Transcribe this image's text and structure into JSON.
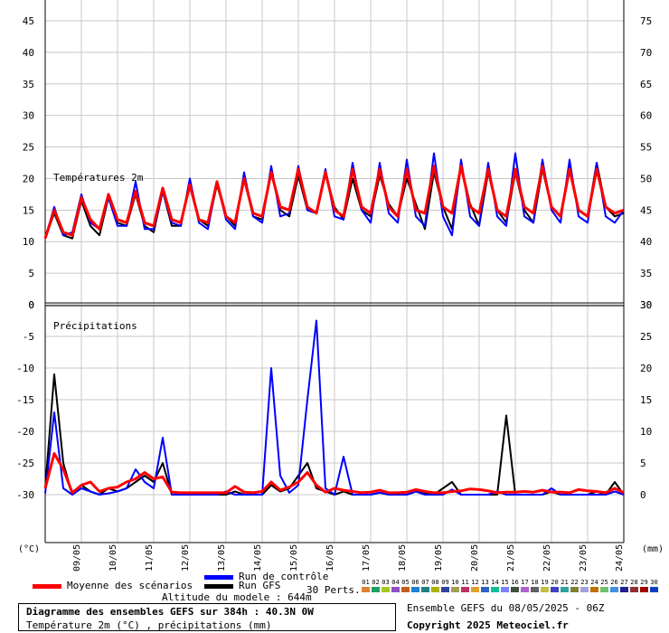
{
  "chart_data": [
    {
      "type": "line",
      "title": "Températures 2m",
      "ylabel_left_unit": "(°C)",
      "ylim_left": [
        0,
        45
      ],
      "yticks_left": [
        "45",
        "40",
        "35",
        "30",
        "25",
        "20",
        "15",
        "10",
        "5",
        "0"
      ],
      "ylim_right": [
        30,
        75
      ],
      "yticks_right": [
        "75",
        "70",
        "65",
        "60",
        "55",
        "50",
        "45",
        "40",
        "35",
        "30"
      ],
      "grid": true,
      "x_dates": [
        "09/05",
        "10/05",
        "11/05",
        "12/05",
        "13/05",
        "14/05",
        "15/05",
        "16/05",
        "17/05",
        "18/05",
        "19/05",
        "20/05",
        "21/05",
        "22/05",
        "23/05",
        "24/05"
      ],
      "x_hours": [
        0,
        6,
        12,
        18,
        24,
        30,
        36,
        42,
        48,
        54,
        60,
        66,
        72,
        78,
        84,
        90,
        96,
        102,
        108,
        114,
        120,
        126,
        132,
        138,
        144,
        150,
        156,
        162,
        168,
        174,
        180,
        186,
        192,
        198,
        204,
        210,
        216,
        222,
        228,
        234,
        240,
        246,
        252,
        258,
        264,
        270,
        276,
        282,
        288,
        294,
        300,
        306,
        312,
        318,
        324,
        330,
        336,
        342,
        348,
        354,
        360,
        366,
        372,
        378,
        384
      ],
      "series": [
        {
          "name": "Moyenne des scénarios",
          "color": "#ff0000",
          "values": [
            10.5,
            15,
            11.5,
            11,
            17,
            13.5,
            12,
            17.5,
            13.5,
            13,
            18,
            13,
            12.5,
            18.5,
            13.5,
            13,
            19,
            13.5,
            13,
            19.5,
            14,
            13,
            20,
            14.5,
            14,
            21,
            15.5,
            15,
            21.5,
            15.5,
            14.5,
            21,
            15,
            14,
            21.5,
            15.5,
            14.5,
            21.5,
            15.5,
            14,
            21.5,
            15,
            14.5,
            22,
            15.5,
            14.5,
            22,
            15.5,
            14.5,
            21.5,
            15,
            14,
            21.5,
            15.5,
            14.5,
            22,
            15.5,
            14,
            21.5,
            15,
            14,
            21.5,
            15.5,
            14.5,
            15
          ]
        },
        {
          "name": "Run de contrôle",
          "color": "#0000ff",
          "values": [
            10.5,
            15.5,
            11,
            11.5,
            17.5,
            13,
            12,
            17,
            12.5,
            12.5,
            19.5,
            12,
            12,
            18,
            13,
            12.5,
            20,
            13,
            12,
            19.5,
            13.5,
            12,
            21,
            14,
            13,
            22,
            14,
            14.5,
            22,
            15,
            14.5,
            21.5,
            14,
            13.5,
            22.5,
            15,
            13,
            22.5,
            14.5,
            13,
            23,
            14,
            12.5,
            24,
            14,
            11,
            23,
            14,
            12.5,
            22.5,
            14,
            12.5,
            24,
            14,
            13,
            23,
            15,
            13,
            23,
            14,
            13,
            22.5,
            14,
            13,
            15
          ]
        },
        {
          "name": "Run GFS",
          "color": "#000000",
          "values": [
            10.5,
            14.5,
            11,
            10.5,
            16.5,
            12.5,
            11,
            17,
            13,
            12.5,
            17.5,
            12.5,
            11.5,
            18,
            12.5,
            12.5,
            19.5,
            13.5,
            12.5,
            19,
            14,
            12.5,
            20,
            14,
            13.5,
            21,
            15,
            14,
            20.5,
            15,
            14.5,
            21,
            15.5,
            13.5,
            20,
            15,
            14,
            20.5,
            16,
            14,
            20,
            16,
            12,
            21,
            15.5,
            12,
            22,
            16,
            12.5,
            21,
            15,
            13,
            21,
            15,
            13,
            21.5,
            15.5,
            14,
            22,
            15,
            14,
            22.5,
            15.5,
            14,
            14.5
          ]
        }
      ]
    },
    {
      "type": "line",
      "title": "Précipitations",
      "ylim_left": [
        -30,
        0
      ],
      "yticks_left": [
        "0",
        "-5",
        "-10",
        "-15",
        "-20",
        "-25",
        "-30"
      ],
      "ylim_right": [
        0,
        30
      ],
      "yticks_right": [
        "30",
        "25",
        "20",
        "15",
        "10",
        "5",
        "0"
      ],
      "ylabel_right_unit": "(mm)",
      "grid": true,
      "x_hours": [
        0,
        6,
        12,
        18,
        24,
        30,
        36,
        42,
        48,
        54,
        60,
        66,
        72,
        78,
        84,
        90,
        96,
        102,
        108,
        114,
        120,
        126,
        132,
        138,
        144,
        150,
        156,
        162,
        168,
        174,
        180,
        186,
        192,
        198,
        204,
        210,
        216,
        222,
        228,
        234,
        240,
        246,
        252,
        258,
        264,
        270,
        276,
        282,
        288,
        294,
        300,
        306,
        312,
        318,
        324,
        330,
        336,
        342,
        348,
        354,
        360,
        366,
        372,
        378,
        384
      ],
      "series": [
        {
          "name": "Moyenne des scénarios",
          "color": "#ff0000",
          "values": [
            1,
            6.5,
            4,
            0.3,
            1.5,
            2,
            0.5,
            1,
            1.2,
            2,
            2.5,
            3.5,
            2.5,
            2.8,
            0.4,
            0.3,
            0.3,
            0.3,
            0.3,
            0.3,
            0.3,
            1.3,
            0.4,
            0.3,
            0.5,
            2,
            0.7,
            1.2,
            2,
            3.5,
            1.5,
            0.4,
            1,
            0.7,
            0.5,
            0.3,
            0.4,
            0.7,
            0.3,
            0.3,
            0.4,
            0.8,
            0.5,
            0.3,
            0.3,
            0.5,
            0.6,
            0.9,
            0.8,
            0.6,
            0.3,
            0.4,
            0.4,
            0.5,
            0.4,
            0.7,
            0.4,
            0.4,
            0.3,
            0.8,
            0.6,
            0.5,
            0.3,
            1,
            0.3
          ]
        },
        {
          "name": "Run de contrôle",
          "color": "#0000ff",
          "values": [
            0.2,
            13,
            1,
            0,
            1,
            0.5,
            0,
            0.2,
            0.5,
            1,
            4,
            2,
            1,
            9,
            0,
            0,
            0,
            0,
            0,
            0,
            0.5,
            0,
            0,
            0,
            0,
            20,
            3,
            0.3,
            1.5,
            15,
            27.5,
            1,
            0,
            6,
            0,
            0,
            0,
            0.3,
            0,
            0,
            0,
            0.5,
            0,
            0,
            0,
            0.8,
            0,
            0,
            0,
            0,
            0.5,
            0,
            0,
            0,
            0,
            0,
            1,
            0,
            0,
            0,
            0,
            0,
            0,
            0.5,
            0
          ]
        },
        {
          "name": "Run GFS",
          "color": "#000000",
          "values": [
            1,
            19,
            5,
            0,
            1.5,
            0.5,
            0,
            1,
            0.5,
            1,
            2,
            3,
            2,
            5,
            0,
            0,
            0,
            0,
            0,
            0,
            0,
            0.5,
            0,
            0,
            0,
            1.5,
            0.5,
            1,
            3,
            5,
            1,
            0.5,
            0,
            0.5,
            0,
            0,
            0,
            0.3,
            0,
            0,
            0,
            0.5,
            0.3,
            0,
            1,
            2,
            0,
            0,
            0,
            0,
            0,
            12.5,
            0,
            0,
            0,
            0,
            0.5,
            0,
            0,
            0,
            0,
            0.5,
            0,
            2,
            0
          ]
        }
      ]
    }
  ],
  "legend": {
    "mean_label": "Moyenne des scénarios",
    "control_label": "Run de contrôle",
    "gfs_label": "Run GFS",
    "perts_label": "30 Perts.",
    "members": [
      "01",
      "02",
      "03",
      "04",
      "05",
      "06",
      "07",
      "08",
      "09",
      "10",
      "11",
      "12",
      "13",
      "14",
      "15",
      "16",
      "17",
      "18",
      "19",
      "20",
      "21",
      "22",
      "23",
      "24",
      "25",
      "26",
      "27",
      "28",
      "29",
      "30"
    ],
    "member_colors": [
      "#e08030",
      "#20a060",
      "#a8c820",
      "#9050c0",
      "#c06020",
      "#2080d0",
      "#208080",
      "#b0b000",
      "#3040a0",
      "#a0a050",
      "#c03060",
      "#e0a030",
      "#3060c0",
      "#10c090",
      "#8080ff",
      "#405040",
      "#b060d0",
      "#606060",
      "#c0c040",
      "#4040c0",
      "#30a0a0",
      "#808030",
      "#a0a0e0",
      "#c07000",
      "#70c070",
      "#4090e0",
      "#202090",
      "#903030",
      "#a00000",
      "#0040c0"
    ]
  },
  "altitude_text": "Altitude du modele : 644m",
  "title_box": {
    "line1": "Diagramme des ensembles GEFS sur 384h : 40.3N 0W",
    "line2": "Température 2m (°C) , précipitations (mm)"
  },
  "run_text": "Ensemble GEFS du 08/05/2025 - 06Z",
  "copyright": "Copyright 2025 Meteociel.fr"
}
